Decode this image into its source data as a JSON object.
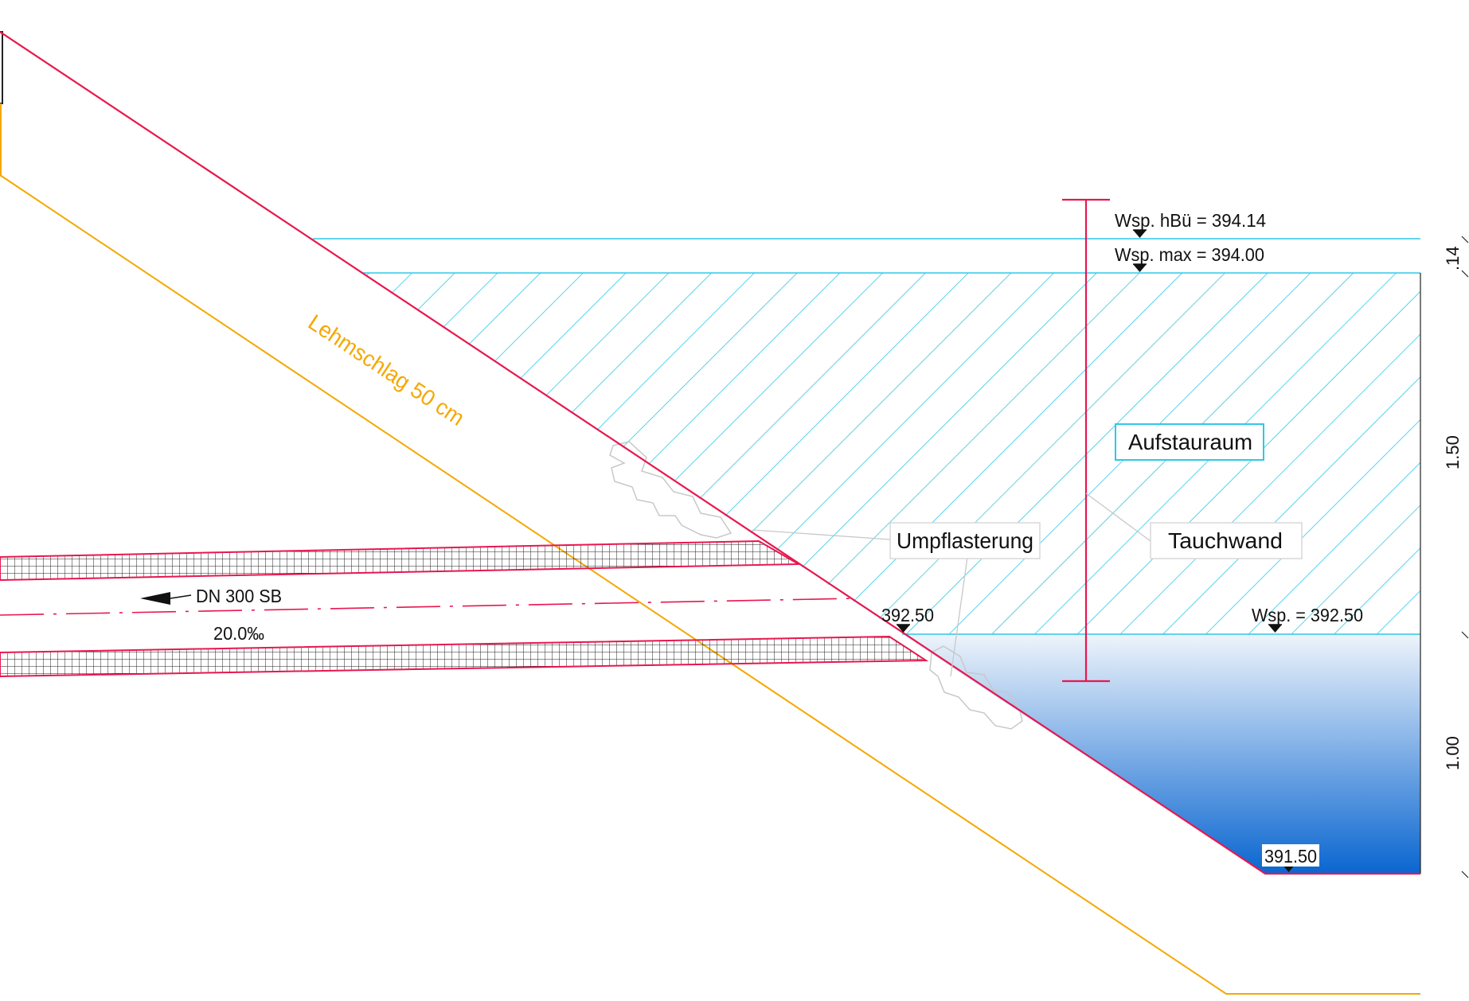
{
  "labels": {
    "wsp_hbu": "Wsp. hBü = 394.14",
    "wsp_max": "Wsp. max = 394.00",
    "aufstauraum": "Aufstauraum",
    "umpflasterung": "Umpflasterung",
    "tauchwand": "Tauchwand",
    "wsp_low": "Wsp. = 392.50",
    "level_392": "392.50",
    "level_391": "391.50",
    "dn_pipe": "DN 300 SB",
    "slope": "20.0‰",
    "lehmschlag": "Lehmschlag 50 cm"
  },
  "dimensions": {
    "top": ".14",
    "upper": "1.50",
    "lower": "1.00"
  },
  "colors": {
    "embankment": "#e8174f",
    "clay": "#f5a800",
    "water_line": "#2ec8e8",
    "hatch": "#2ec8e8",
    "water_top": "#eef4fb",
    "water_bottom": "#0a66d0",
    "stone": "#c8c8c8",
    "text": "#111111"
  }
}
